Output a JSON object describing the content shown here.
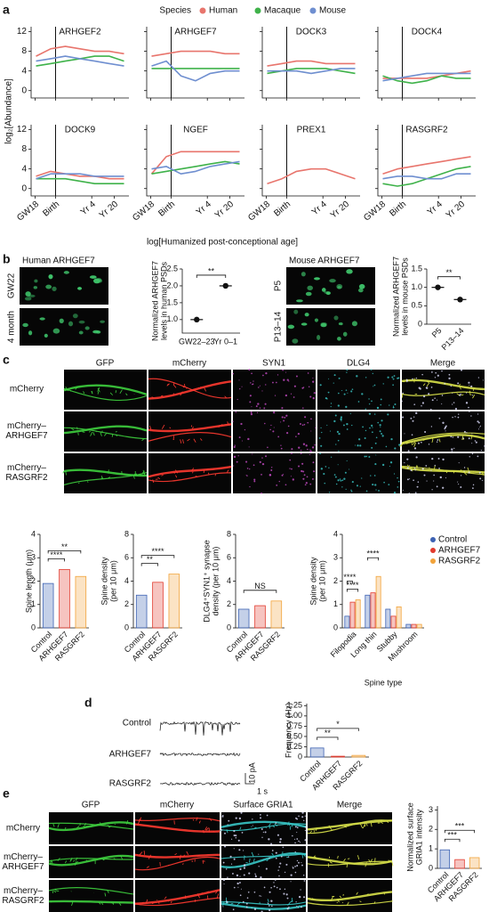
{
  "panel_labels": [
    "a",
    "b",
    "c",
    "d",
    "e"
  ],
  "a": {
    "legend_title": "Species",
    "series_names": [
      "Human",
      "Macaque",
      "Mouse"
    ],
    "colors": [
      "#e8756d",
      "#3fb24a",
      "#6f8fd0"
    ],
    "ylabel": "log₂[Abundance]",
    "xlabel": "log[Humanized post-conceptional age]",
    "ylim": [
      -1.5,
      13
    ],
    "yticks": [
      0,
      4,
      8,
      12
    ],
    "xlim": [
      0,
      1
    ],
    "xticks": [
      {
        "value": 0.04,
        "label": "GW18"
      },
      {
        "value": 0.25,
        "label": "Birth"
      },
      {
        "value": 0.62,
        "label": "Yr 4"
      },
      {
        "value": 0.85,
        "label": "Yr 20"
      }
    ],
    "x": [
      0.05,
      0.2,
      0.35,
      0.5,
      0.65,
      0.8,
      0.95
    ],
    "genes": [
      {
        "title": "ARHGEF2",
        "values": [
          [
            7,
            8.5,
            9,
            8.5,
            8,
            8,
            7.5
          ],
          [
            5,
            5.5,
            6,
            6.5,
            7,
            7,
            6
          ],
          [
            6,
            6.5,
            7,
            6.5,
            6,
            5.5,
            5
          ]
        ]
      },
      {
        "title": "ARHGEF7",
        "values": [
          [
            7,
            7.5,
            8,
            8,
            8,
            7.5,
            7.5
          ],
          [
            4.5,
            4.5,
            4.5,
            4.5,
            4.5,
            4.5,
            4.5
          ],
          [
            5,
            6,
            3,
            2,
            3.5,
            4,
            4
          ]
        ]
      },
      {
        "title": "DOCK3",
        "values": [
          [
            5,
            5.5,
            6,
            6,
            5.5,
            5.5,
            5.5
          ],
          [
            3.5,
            4,
            4.5,
            4.5,
            4.5,
            4,
            3.5
          ],
          [
            4,
            4,
            4,
            3.5,
            4,
            4.5,
            4.5
          ]
        ]
      },
      {
        "title": "DOCK4",
        "values": [
          [
            2.5,
            2.5,
            2.5,
            2.5,
            3,
            3.5,
            4
          ],
          [
            3,
            2,
            1.5,
            2,
            3,
            2.5,
            2.5
          ],
          [
            2,
            2.5,
            3,
            3.5,
            3.5,
            3.5,
            3.5
          ]
        ]
      },
      {
        "title": "DOCK9",
        "values": [
          [
            2.5,
            3.5,
            3,
            2.5,
            2.5,
            2,
            2
          ],
          [
            2,
            2,
            2,
            1.5,
            1,
            1,
            1
          ],
          [
            2,
            3,
            3,
            3,
            2.5,
            2.5,
            2.5
          ]
        ]
      },
      {
        "title": "NGEF",
        "values": [
          [
            3,
            6.5,
            7.5,
            7.5,
            7.5,
            7.5,
            7.5
          ],
          [
            3,
            3.5,
            4,
            4.5,
            5,
            5.5,
            5
          ],
          [
            4,
            4.5,
            3,
            3.5,
            4.5,
            5,
            5.5
          ]
        ]
      },
      {
        "title": "PREX1",
        "values": [
          [
            1,
            2,
            3.5,
            4,
            4,
            3,
            2
          ]
        ]
      },
      {
        "title": "RASGRF2",
        "values": [
          [
            3,
            4,
            4.5,
            5,
            5.5,
            6,
            6.5
          ],
          [
            1,
            0.5,
            1,
            2,
            3,
            4,
            4.5
          ],
          [
            2,
            2.5,
            2.5,
            2,
            2,
            3,
            3
          ]
        ]
      }
    ]
  },
  "b": {
    "human": {
      "title": "Human ARHGEF7",
      "image_labels": [
        "GW22",
        "4 month"
      ],
      "ylabel": [
        "Normalized ARHGEF7",
        "levels in human PSDs"
      ],
      "categories": [
        "GW22–23",
        "Yr 0–1"
      ],
      "values": [
        1.0,
        2.0
      ],
      "ylim": [
        0.6,
        2.5
      ],
      "yticks": [
        {
          "value": 1,
          "label": "1.0"
        },
        1.5,
        {
          "value": 2,
          "label": "2.0"
        },
        2.5
      ],
      "significance": [
        "**"
      ]
    },
    "mouse": {
      "title": "Mouse ARHGEF7",
      "image_labels": [
        "P5",
        "P13–14"
      ],
      "ylabel": [
        "Normalized ARHGEF7",
        "levels in mouse PSDs"
      ],
      "categories": [
        "P5",
        "P13–14"
      ],
      "values": [
        1.0,
        0.67
      ],
      "ylim": [
        0,
        1.5
      ],
      "yticks": [
        0,
        0.5,
        {
          "value": 1,
          "label": "1.0"
        },
        1.5
      ],
      "significance": [
        "**"
      ]
    }
  },
  "c": {
    "column_labels": [
      "GFP",
      "mCherry",
      "SYN1",
      "DLG4",
      "Merge"
    ],
    "row_labels": [
      [
        "mCherry"
      ],
      [
        "mCherry–",
        "ARHGEF7"
      ],
      [
        "mCherry–",
        "RASGRF2"
      ]
    ],
    "charts": [
      {
        "type": "bar",
        "ylabel": [
          "Spine length (μm)"
        ],
        "categories": [
          "Control",
          "ARHGEF7",
          "RASGRF2"
        ],
        "values": [
          1.9,
          2.5,
          2.2
        ],
        "colors": [
          "#3d62b3",
          "#e23b2e",
          "#f2a33a"
        ],
        "ylim": [
          0,
          4
        ],
        "yticks": [
          0,
          1,
          2,
          3,
          4
        ],
        "significance": [
          "****",
          "**"
        ]
      },
      {
        "type": "bar",
        "ylabel": [
          "Spine density",
          "(per 10 μm)"
        ],
        "categories": [
          "Control",
          "ARHGEF7",
          "RASGRF2"
        ],
        "values": [
          2.8,
          3.9,
          4.6
        ],
        "colors": [
          "#3d62b3",
          "#e23b2e",
          "#f2a33a"
        ],
        "ylim": [
          0,
          8
        ],
        "yticks": [
          0,
          2,
          4,
          6,
          8
        ],
        "significance": [
          "**",
          "****"
        ]
      },
      {
        "type": "bar",
        "ylabel": [
          "DLG4⁺SYN1⁺ synapse",
          "density (per 10 μm)"
        ],
        "categories": [
          "Control",
          "ARHGEF7",
          "RASGRF2"
        ],
        "values": [
          1.6,
          1.9,
          2.3
        ],
        "colors": [
          "#3d62b3",
          "#e23b2e",
          "#f2a33a"
        ],
        "ylim": [
          0,
          8
        ],
        "yticks": [
          0,
          2,
          4,
          6,
          8
        ],
        "significance": [
          "NS"
        ]
      },
      {
        "type": "grouped_bar",
        "ylabel": [
          "Spine density",
          "(per 10 μm)"
        ],
        "xlabel": "Spine type",
        "categories": [
          "Filopodia",
          "Long thin",
          "Stubby",
          "Mushroom"
        ],
        "series": [
          {
            "name": "Control",
            "color": "#3d62b3",
            "values": [
              0.5,
              1.4,
              0.8,
              0.15
            ]
          },
          {
            "name": "ARHGEF7",
            "color": "#e23b2e",
            "values": [
              1.1,
              1.5,
              0.5,
              0.15
            ]
          },
          {
            "name": "RASGRF2",
            "color": "#f2a33a",
            "values": [
              1.2,
              2.2,
              0.9,
              0.15
            ]
          }
        ],
        "ylim": [
          0,
          4
        ],
        "yticks": [
          0,
          1,
          2,
          3,
          4
        ],
        "significance": [
          "****",
          "****",
          "****"
        ]
      }
    ]
  },
  "d": {
    "trace_labels": [
      "Control",
      "ARHGEF7",
      "RASGRF2"
    ],
    "scale_labels": [
      "10 pA",
      "1 s"
    ],
    "chart": {
      "type": "bar",
      "ylabel": [
        "Frequency (Hz)"
      ],
      "categories": [
        "Control",
        "ARHGEF7",
        "RASGRF2"
      ],
      "values": [
        0.22,
        0.02,
        0.04
      ],
      "colors": [
        "#3d62b3",
        "#e23b2e",
        "#f2a33a"
      ],
      "ylim": [
        0,
        1.3
      ],
      "yticks": [
        0,
        0.25,
        {
          "value": 0.5,
          "label": "0.50"
        },
        0.75,
        {
          "value": 1,
          "label": "1.00"
        },
        1.25
      ],
      "significance": [
        "**",
        "*"
      ]
    }
  },
  "e": {
    "column_labels": [
      "GFP",
      "mCherry",
      "Surface GRIA1",
      "Merge"
    ],
    "row_labels": [
      [
        "mCherry"
      ],
      [
        "mCherry–",
        "ARHGEF7"
      ],
      [
        "mCherry–",
        "RASGRF2"
      ]
    ],
    "chart": {
      "type": "bar",
      "ylabel": [
        "Normalized surface",
        "GRIA1 intensity"
      ],
      "categories": [
        "Control",
        "ARHGEF7",
        "RASGRF2"
      ],
      "values": [
        0.95,
        0.45,
        0.55
      ],
      "colors": [
        "#3d62b3",
        "#e23b2e",
        "#f2a33a"
      ],
      "ylim": [
        0,
        3.2
      ],
      "yticks": [
        0,
        1,
        2,
        3
      ],
      "significance": [
        "***",
        "***"
      ]
    }
  }
}
